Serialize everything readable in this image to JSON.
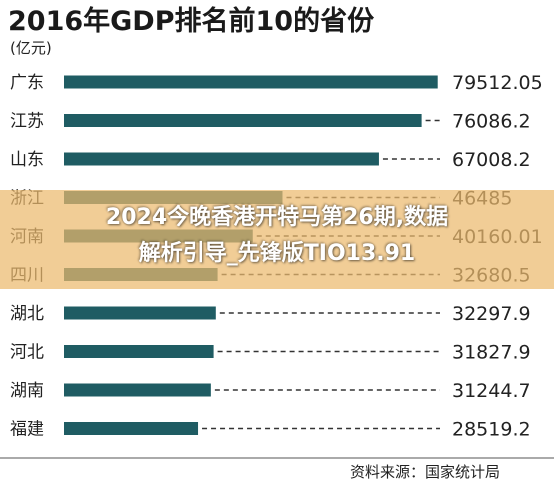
{
  "chart_data": {
    "type": "bar",
    "orientation": "horizontal",
    "title": "2016年GDP排名前10的省份",
    "unit_label": "(亿元)",
    "categories": [
      "广东",
      "江苏",
      "山东",
      "浙江",
      "河南",
      "四川",
      "湖北",
      "河北",
      "湖南",
      "福建"
    ],
    "values": [
      79512.05,
      76086.2,
      67008.2,
      46485,
      40160.01,
      32680.5,
      32297.9,
      31827.9,
      31244.7,
      28519.2
    ],
    "value_labels": [
      "79512.05",
      "76086.2",
      "67008.2",
      "46485",
      "40160.01",
      "32680.5",
      "32297.9",
      "31827.9",
      "31244.7",
      "28519.2"
    ],
    "xlim": [
      0,
      80000
    ],
    "grid": false,
    "source": "资料来源：国家统计局",
    "colors": {
      "bar": "#1f5c63",
      "banner": "#ecba6e"
    }
  },
  "overlay": {
    "line1": "2024今晚香港开特马第26期,数据",
    "line2": "解析引导_先锋版TIO13.91"
  }
}
